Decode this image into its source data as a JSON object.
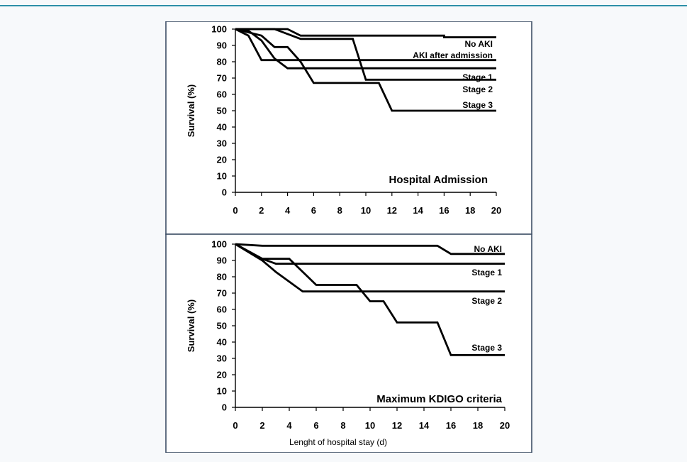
{
  "chart_data": [
    {
      "type": "line",
      "step": true,
      "title": "Hospital Admission",
      "xlabel": "",
      "ylabel": "Survival  (%)",
      "xlim": [
        0,
        20
      ],
      "ylim": [
        0,
        100
      ],
      "xticks": [
        0,
        2,
        4,
        6,
        8,
        10,
        12,
        14,
        16,
        18,
        20
      ],
      "yticks": [
        0,
        10,
        20,
        30,
        40,
        50,
        60,
        70,
        80,
        90,
        100
      ],
      "grid": false,
      "series": [
        {
          "name": "No AKI",
          "points": [
            [
              0,
              100
            ],
            [
              4,
              100
            ],
            [
              5,
              96
            ],
            [
              16,
              96
            ],
            [
              16,
              95
            ],
            [
              20,
              95
            ]
          ]
        },
        {
          "name": "AKI after admission",
          "points": [
            [
              0,
              100
            ],
            [
              1,
              96
            ],
            [
              2,
              81
            ],
            [
              20,
              81
            ]
          ]
        },
        {
          "name": "Stage 1",
          "points": [
            [
              0,
              100
            ],
            [
              1,
              99
            ],
            [
              2,
              93
            ],
            [
              3,
              82
            ],
            [
              4,
              76
            ],
            [
              20,
              76
            ]
          ]
        },
        {
          "name": "Stage 2",
          "points": [
            [
              0,
              100
            ],
            [
              3,
              100
            ],
            [
              5,
              94
            ],
            [
              9,
              94
            ],
            [
              10,
              69
            ],
            [
              20,
              69
            ]
          ]
        },
        {
          "name": "Stage 3",
          "points": [
            [
              0,
              100
            ],
            [
              2,
              96
            ],
            [
              3,
              89
            ],
            [
              4,
              89
            ],
            [
              5,
              80
            ],
            [
              6,
              67
            ],
            [
              11,
              67
            ],
            [
              12,
              50
            ],
            [
              20,
              50
            ]
          ]
        }
      ]
    },
    {
      "type": "line",
      "step": true,
      "title": "Maximum KDIGO criteria",
      "xlabel": "Lenght of hospital stay (d)",
      "ylabel": "Survival  (%)",
      "xlim": [
        0,
        20
      ],
      "ylim": [
        0,
        100
      ],
      "xticks": [
        0,
        2,
        4,
        6,
        8,
        10,
        12,
        14,
        16,
        18,
        20
      ],
      "yticks": [
        0,
        10,
        20,
        30,
        40,
        50,
        60,
        70,
        80,
        90,
        100
      ],
      "grid": false,
      "series": [
        {
          "name": "No AKI",
          "points": [
            [
              0,
              100
            ],
            [
              2,
              99
            ],
            [
              15,
              99
            ],
            [
              16,
              94
            ],
            [
              20,
              94
            ]
          ]
        },
        {
          "name": "Stage 1",
          "points": [
            [
              0,
              100
            ],
            [
              2,
              91
            ],
            [
              3,
              88
            ],
            [
              20,
              88
            ]
          ]
        },
        {
          "name": "Stage 2",
          "points": [
            [
              0,
              100
            ],
            [
              2,
              90
            ],
            [
              3,
              83
            ],
            [
              5,
              71
            ],
            [
              20,
              71
            ]
          ]
        },
        {
          "name": "Stage 3",
          "points": [
            [
              0,
              100
            ],
            [
              2,
              91
            ],
            [
              4,
              91
            ],
            [
              6,
              75
            ],
            [
              9,
              75
            ],
            [
              10,
              65
            ],
            [
              11,
              65
            ],
            [
              12,
              52
            ],
            [
              15,
              52
            ],
            [
              16,
              32
            ],
            [
              20,
              32
            ]
          ]
        }
      ]
    }
  ]
}
